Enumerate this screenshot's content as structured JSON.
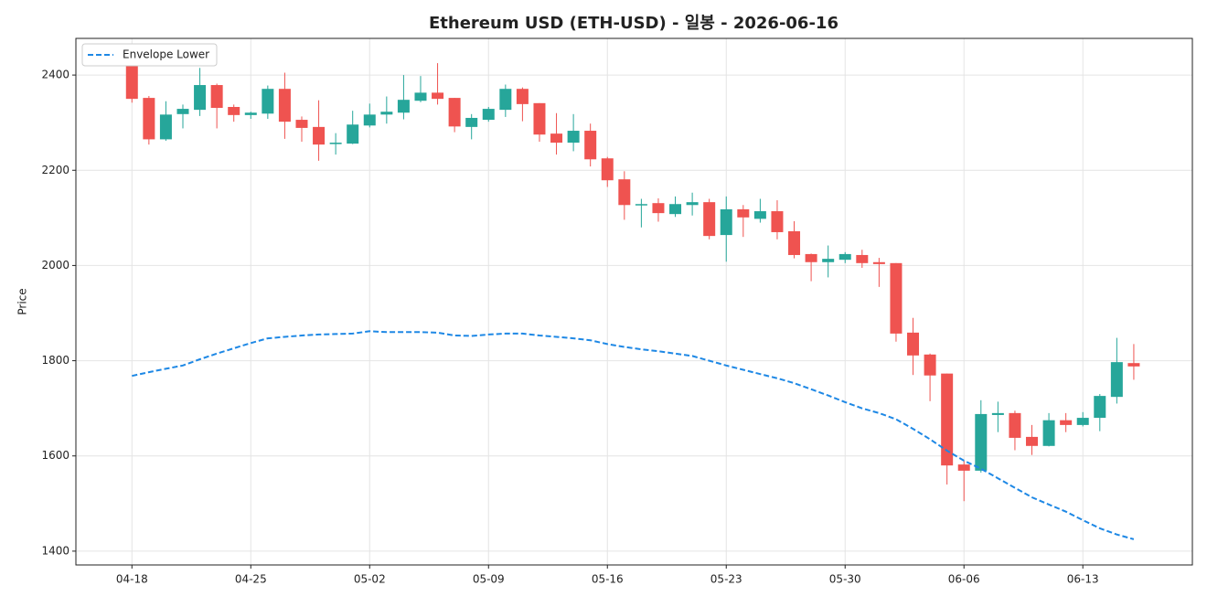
{
  "chart_data": {
    "type": "candlestick",
    "title": "Ethereum USD (ETH-USD) - 일봉 - 2026-06-16",
    "ylabel": "Price",
    "categories": [
      "04-18",
      null,
      null,
      null,
      null,
      null,
      null,
      "04-25",
      null,
      null,
      null,
      null,
      null,
      null,
      "05-02",
      null,
      null,
      null,
      null,
      null,
      null,
      "05-09",
      null,
      null,
      null,
      null,
      null,
      null,
      "05-16",
      null,
      null,
      null,
      null,
      null,
      null,
      "05-23",
      null,
      null,
      null,
      null,
      null,
      null,
      "05-30",
      null,
      null,
      null,
      null,
      null,
      null,
      "06-06",
      null,
      null,
      null,
      null,
      null,
      null,
      "06-13",
      null,
      null,
      null
    ],
    "open": [
      2420,
      2352,
      2265,
      2318,
      2327,
      2379,
      2333,
      2316,
      2319,
      2371,
      2306,
      2291,
      2255,
      2256,
      2294,
      2317,
      2321,
      2346,
      2363,
      2352,
      2291,
      2306,
      2327,
      2371,
      2341,
      2277,
      2258,
      2283,
      2225,
      2181,
      2127,
      2131,
      2108,
      2127,
      2133,
      2064,
      2118,
      2098,
      2114,
      2072,
      2024,
      2007,
      2012,
      2022,
      2007,
      2005,
      1859,
      1813,
      1773,
      1582,
      1569,
      1686,
      1690,
      1640,
      1621,
      1675,
      1665,
      1680,
      1724,
      1795
    ],
    "high": [
      2425,
      2356,
      2345,
      2338,
      2415,
      2382,
      2338,
      2323,
      2378,
      2405,
      2313,
      2347,
      2278,
      2325,
      2340,
      2355,
      2400,
      2398,
      2425,
      2352,
      2318,
      2333,
      2380,
      2374,
      2341,
      2320,
      2318,
      2298,
      2228,
      2198,
      2140,
      2141,
      2145,
      2153,
      2140,
      2145,
      2127,
      2140,
      2137,
      2093,
      2025,
      2042,
      2028,
      2033,
      2016,
      2005,
      1890,
      1815,
      1773,
      1590,
      1717,
      1714,
      1695,
      1665,
      1690,
      1690,
      1692,
      1730,
      1848,
      1835
    ],
    "low": [
      2342,
      2254,
      2262,
      2288,
      2314,
      2288,
      2302,
      2308,
      2308,
      2266,
      2260,
      2220,
      2233,
      2255,
      2290,
      2298,
      2307,
      2343,
      2338,
      2280,
      2265,
      2302,
      2312,
      2303,
      2260,
      2233,
      2240,
      2208,
      2165,
      2096,
      2080,
      2092,
      2102,
      2105,
      2055,
      2008,
      2060,
      2090,
      2055,
      2015,
      1967,
      1975,
      2005,
      1995,
      1955,
      1840,
      1770,
      1715,
      1540,
      1505,
      1565,
      1650,
      1612,
      1602,
      1620,
      1650,
      1662,
      1652,
      1710,
      1760
    ],
    "close": [
      2350,
      2265,
      2317,
      2329,
      2379,
      2331,
      2316,
      2321,
      2371,
      2302,
      2289,
      2254,
      2258,
      2296,
      2317,
      2323,
      2348,
      2363,
      2350,
      2292,
      2310,
      2329,
      2371,
      2339,
      2275,
      2258,
      2283,
      2223,
      2179,
      2127,
      2129,
      2110,
      2129,
      2133,
      2062,
      2118,
      2101,
      2114,
      2070,
      2022,
      2007,
      2014,
      2024,
      2005,
      2003,
      1857,
      1811,
      1769,
      1580,
      1569,
      1688,
      1690,
      1638,
      1621,
      1675,
      1665,
      1680,
      1726,
      1797,
      1788
    ],
    "up_color": "#26a69a",
    "down_color": "#ef5350",
    "series": [
      {
        "name": "Envelope Lower",
        "color": "#1e88e5",
        "dash": true,
        "values": [
          1768,
          1776,
          1783,
          1790,
          1803,
          1815,
          1826,
          1837,
          1847,
          1850,
          1853,
          1855,
          1856,
          1857,
          1862,
          1860,
          1860,
          1860,
          1859,
          1853,
          1852,
          1855,
          1857,
          1857,
          1853,
          1850,
          1847,
          1843,
          1835,
          1829,
          1824,
          1820,
          1815,
          1810,
          1800,
          1790,
          1781,
          1772,
          1763,
          1753,
          1740,
          1727,
          1713,
          1700,
          1690,
          1677,
          1657,
          1635,
          1611,
          1590,
          1573,
          1553,
          1533,
          1513,
          1498,
          1483,
          1465,
          1448,
          1435,
          1425
        ]
      }
    ],
    "ylim": [
      1371,
      2477
    ],
    "yticks": [
      1400,
      1600,
      1800,
      2000,
      2200,
      2400
    ],
    "grid": true,
    "legend": "upper left"
  }
}
